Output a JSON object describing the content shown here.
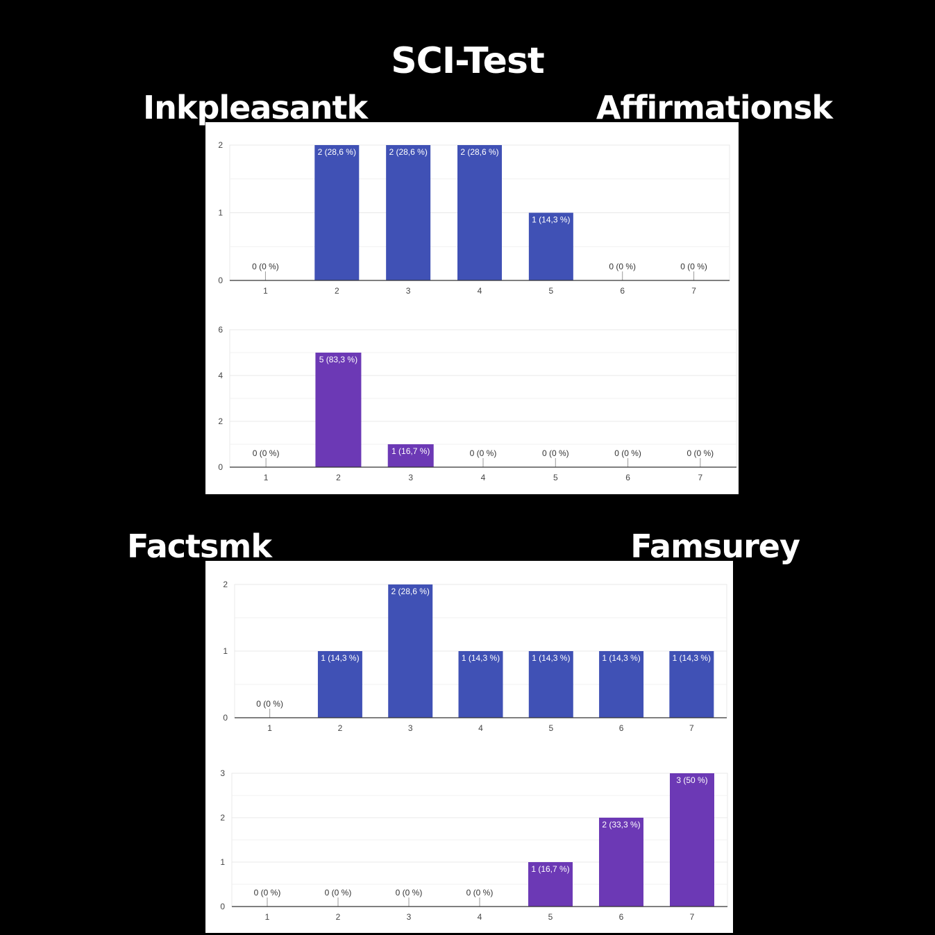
{
  "title": "SCI-Test",
  "labels": {
    "top_left": "Inkpleasantk",
    "top_right": "Affirmationsk",
    "bottom_left": "Factsmk",
    "bottom_right": "Famsurey"
  },
  "colors": {
    "blue_bars": "#4051b5",
    "purple_bars": "#6c39b5",
    "gridline": "#e8e8e8",
    "axis": "#333333"
  },
  "chart_data": [
    {
      "type": "bar",
      "categories": [
        "1",
        "2",
        "3",
        "4",
        "5",
        "6",
        "7"
      ],
      "values": [
        0,
        2,
        2,
        2,
        1,
        0,
        0
      ],
      "data_labels": [
        "0 (0 %)",
        "2 (28,6 %)",
        "2 (28,6 %)",
        "2 (28,6 %)",
        "1 (14,3 %)",
        "0 (0 %)",
        "0 (0 %)"
      ],
      "yticks": [
        0,
        1,
        2
      ],
      "ylim": [
        0,
        2
      ],
      "color": "#4051b5"
    },
    {
      "type": "bar",
      "categories": [
        "1",
        "2",
        "3",
        "4",
        "5",
        "6",
        "7"
      ],
      "values": [
        0,
        5,
        1,
        0,
        0,
        0,
        0
      ],
      "data_labels": [
        "0 (0 %)",
        "5 (83,3 %)",
        "1 (16,7 %)",
        "0 (0 %)",
        "0 (0 %)",
        "0 (0 %)",
        "0 (0 %)"
      ],
      "yticks": [
        0,
        2,
        4,
        6
      ],
      "ylim": [
        0,
        6
      ],
      "color": "#6c39b5"
    },
    {
      "type": "bar",
      "categories": [
        "1",
        "2",
        "3",
        "4",
        "5",
        "6",
        "7"
      ],
      "values": [
        0,
        1,
        2,
        1,
        1,
        1,
        1
      ],
      "data_labels": [
        "0 (0 %)",
        "1 (14,3 %)",
        "2 (28,6 %)",
        "1 (14,3 %)",
        "1 (14,3 %)",
        "1 (14,3 %)",
        "1 (14,3 %)"
      ],
      "yticks": [
        0,
        1,
        2
      ],
      "ylim": [
        0,
        2
      ],
      "color": "#4051b5"
    },
    {
      "type": "bar",
      "categories": [
        "1",
        "2",
        "3",
        "4",
        "5",
        "6",
        "7"
      ],
      "values": [
        0,
        0,
        0,
        0,
        1,
        2,
        3
      ],
      "data_labels": [
        "0 (0 %)",
        "0 (0 %)",
        "0 (0 %)",
        "0 (0 %)",
        "1 (16,7 %)",
        "2 (33,3 %)",
        "3 (50 %)"
      ],
      "yticks": [
        0,
        1,
        2,
        3
      ],
      "ylim": [
        0,
        3
      ],
      "color": "#6c39b5"
    }
  ]
}
